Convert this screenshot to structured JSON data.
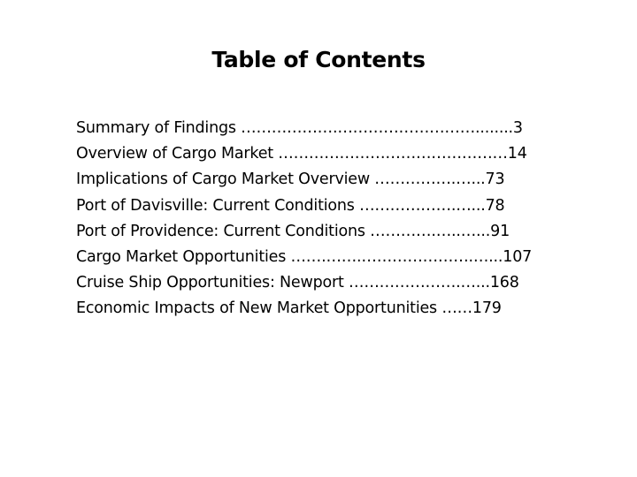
{
  "title": "Table of Contents",
  "toc": [
    {
      "text": "Summary of Findings ……………….………………………........3"
    },
    {
      "text": "Overview of Cargo Market ………………………………………14"
    },
    {
      "text": "Implications of Cargo Market Overview …………….…...73"
    },
    {
      "text": "Port of Davisville: Current Conditions ……………….…...78"
    },
    {
      "text": "Port of Providence: Current Conditions ………….…..…...91"
    },
    {
      "text": "Cargo Market Opportunities …….…….………………….…...107"
    },
    {
      "text": "Cruise Ship Opportunities: Newport ………………….…...168"
    },
    {
      "text": "Economic Impacts of New Market Opportunities ……179"
    }
  ]
}
